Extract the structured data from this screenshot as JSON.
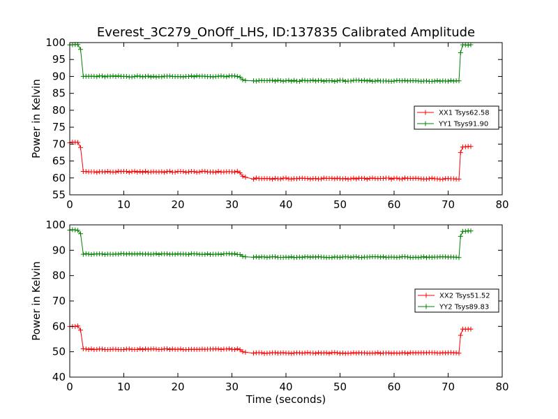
{
  "figure_title": "Everest_3C279_OnOff_LHS, ID:137835 Calibrated Amplitude",
  "chart_data": [
    {
      "type": "line",
      "ylabel": "Power in Kelvin",
      "xlabel": "",
      "xlim": [
        0,
        80
      ],
      "ylim": [
        55,
        100
      ],
      "xticks": [
        0,
        10,
        20,
        30,
        40,
        50,
        60,
        70,
        80
      ],
      "yticks": [
        55,
        60,
        65,
        70,
        75,
        80,
        85,
        90,
        95,
        100
      ],
      "grid": false,
      "legend_position": "center-right",
      "series": [
        {
          "name": "XX1 Tsys62.58",
          "color": "#ff0000",
          "marker": "plus",
          "levels": [
            {
              "t0": 0.0,
              "t1": 1.6,
              "y": 70.5
            },
            {
              "t0": 2.5,
              "t1": 31.0,
              "y": 61.8
            },
            {
              "t0": 34.0,
              "t1": 72.0,
              "y": 59.8
            },
            {
              "t0": 72.7,
              "t1": 74.5,
              "y": 69.3
            }
          ],
          "transitions": [
            {
              "at": 2.0,
              "y": 69.0
            },
            {
              "at": 31.5,
              "y": 61.5
            },
            {
              "at": 32.0,
              "y": 60.5
            },
            {
              "at": 32.5,
              "y": 60.2
            },
            {
              "at": 72.3,
              "y": 67.5
            }
          ]
        },
        {
          "name": "YY1 Tsys91.90",
          "color": "#008000",
          "marker": "plus",
          "levels": [
            {
              "t0": 0.0,
              "t1": 1.6,
              "y": 99.5
            },
            {
              "t0": 2.5,
              "t1": 31.0,
              "y": 90.0
            },
            {
              "t0": 34.0,
              "t1": 72.0,
              "y": 88.7
            },
            {
              "t0": 72.7,
              "t1": 74.5,
              "y": 99.3
            }
          ],
          "transitions": [
            {
              "at": 2.0,
              "y": 98.0
            },
            {
              "at": 31.5,
              "y": 89.8
            },
            {
              "at": 32.0,
              "y": 89.0
            },
            {
              "at": 32.5,
              "y": 88.8
            },
            {
              "at": 72.3,
              "y": 97.0
            }
          ]
        }
      ]
    },
    {
      "type": "line",
      "ylabel": "Power in Kelvin",
      "xlabel": "Time (seconds)",
      "xlim": [
        0,
        80
      ],
      "ylim": [
        40,
        100
      ],
      "xticks": [
        0,
        10,
        20,
        30,
        40,
        50,
        60,
        70,
        80
      ],
      "yticks": [
        40,
        50,
        60,
        70,
        80,
        90,
        100
      ],
      "grid": false,
      "legend_position": "center-right",
      "series": [
        {
          "name": "XX2 Tsys51.52",
          "color": "#ff0000",
          "marker": "plus",
          "levels": [
            {
              "t0": 0.0,
              "t1": 1.6,
              "y": 60.0
            },
            {
              "t0": 2.5,
              "t1": 31.0,
              "y": 51.0
            },
            {
              "t0": 34.0,
              "t1": 72.0,
              "y": 49.5
            },
            {
              "t0": 72.7,
              "t1": 74.5,
              "y": 58.8
            }
          ],
          "transitions": [
            {
              "at": 2.0,
              "y": 58.5
            },
            {
              "at": 31.5,
              "y": 50.8
            },
            {
              "at": 32.0,
              "y": 50.0
            },
            {
              "at": 32.5,
              "y": 49.8
            },
            {
              "at": 72.3,
              "y": 56.5
            }
          ]
        },
        {
          "name": "YY2 Tsys89.83",
          "color": "#008000",
          "marker": "plus",
          "levels": [
            {
              "t0": 0.0,
              "t1": 1.6,
              "y": 98.0
            },
            {
              "t0": 2.5,
              "t1": 31.0,
              "y": 88.5
            },
            {
              "t0": 34.0,
              "t1": 72.0,
              "y": 87.3
            },
            {
              "t0": 72.7,
              "t1": 74.5,
              "y": 97.5
            }
          ],
          "transitions": [
            {
              "at": 2.0,
              "y": 96.5
            },
            {
              "at": 31.5,
              "y": 88.3
            },
            {
              "at": 32.0,
              "y": 87.6
            },
            {
              "at": 32.5,
              "y": 87.4
            },
            {
              "at": 72.3,
              "y": 95.5
            }
          ]
        }
      ]
    }
  ]
}
